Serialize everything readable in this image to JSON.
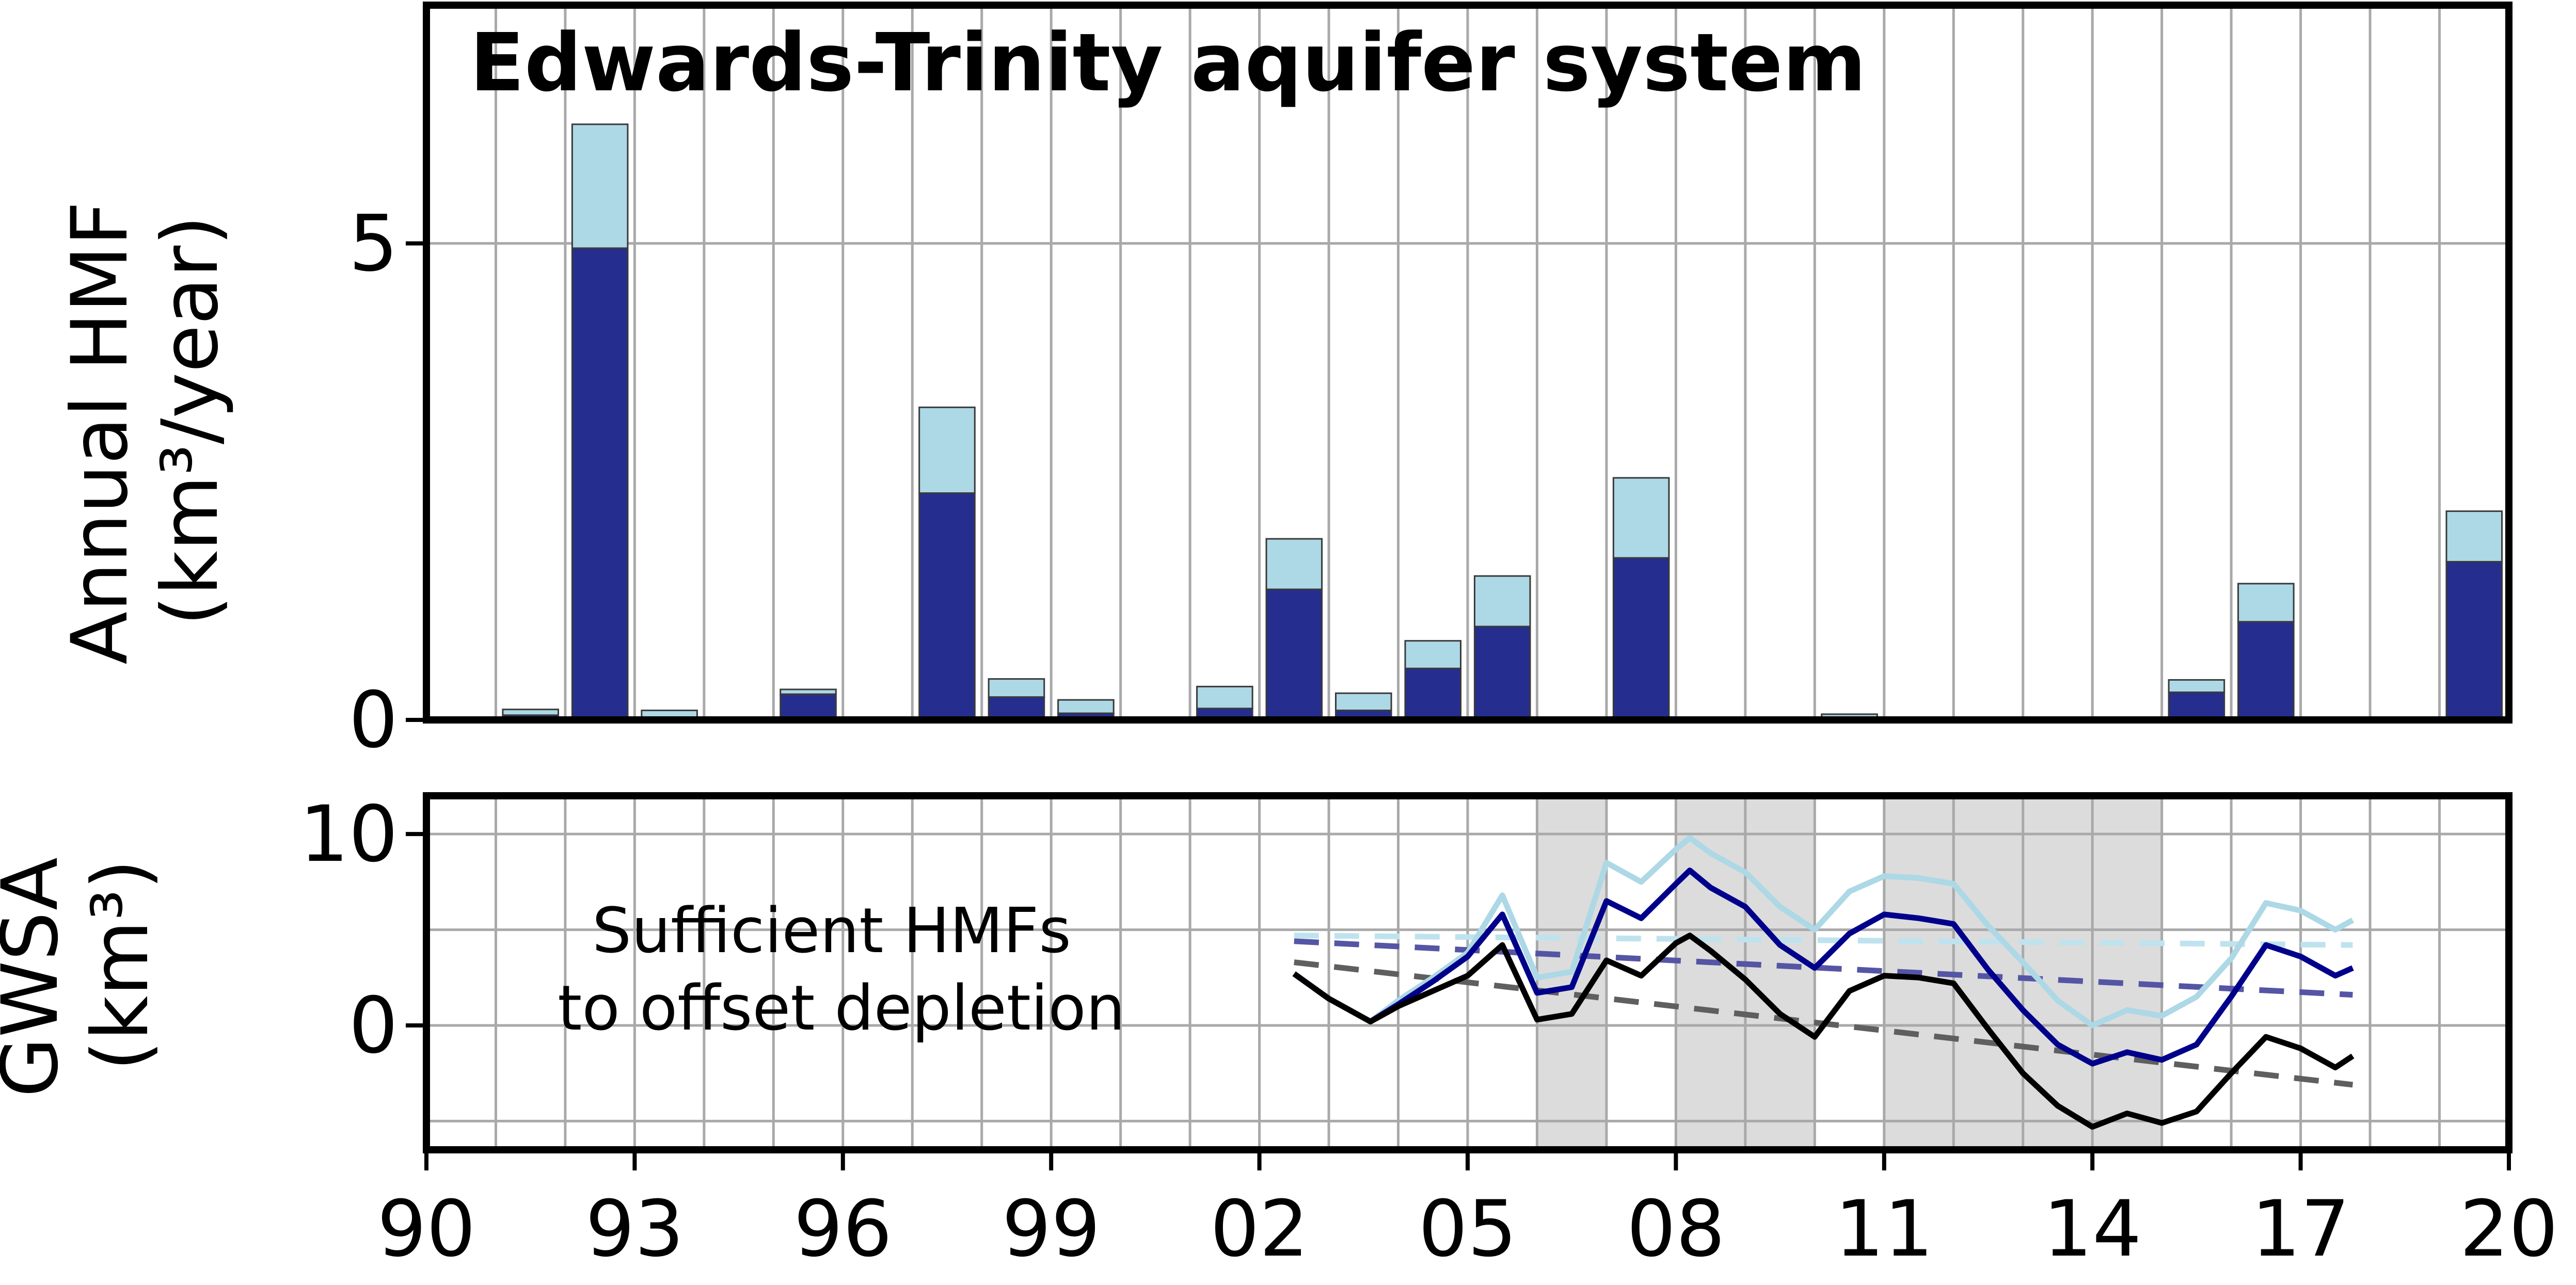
{
  "chart_data": [
    {
      "type": "bar",
      "stacked": true,
      "title": "Edwards-Trinity aquifer system",
      "ylabel_line1": "Annual HMF",
      "ylabel_line2": "(km³/year)",
      "ylim": [
        0,
        7.5
      ],
      "yticks": [
        "0",
        "5"
      ],
      "ytick_values": [
        0,
        5
      ],
      "grid": true,
      "xlim": [
        1990,
        2020
      ],
      "x": [
        1991,
        1992,
        1993,
        1995,
        1996,
        1997,
        1998,
        1999,
        2001,
        2002,
        2003,
        2004,
        2005,
        2007,
        2010,
        2015,
        2016,
        2019
      ],
      "series": [
        {
          "color": "#252e8f",
          "values": [
            0.05,
            4.95,
            0.03,
            0.27,
            0.03,
            2.38,
            0.24,
            0.07,
            0.12,
            1.37,
            0.1,
            0.54,
            0.98,
            1.7,
            0.02,
            0.29,
            1.03,
            1.66
          ]
        },
        {
          "color": "#add8e6",
          "values": [
            0.06,
            1.3,
            0.07,
            0.05,
            0.0,
            0.9,
            0.19,
            0.14,
            0.23,
            0.53,
            0.18,
            0.29,
            0.53,
            0.84,
            0.04,
            0.13,
            0.4,
            0.53
          ]
        }
      ]
    },
    {
      "type": "line",
      "ylabel_line1": "GWSA",
      "ylabel_line2": "(km³)",
      "ylim": [
        -6.5,
        12
      ],
      "yticks": [
        "0",
        "10"
      ],
      "ytick_values": [
        0,
        10
      ],
      "xlim": [
        1990,
        2020
      ],
      "xtick_values": [
        1990,
        1993,
        1996,
        1999,
        2002,
        2005,
        2008,
        2011,
        2014,
        2017,
        2020
      ],
      "xticks": [
        "90",
        "93",
        "96",
        "99",
        "02",
        "05",
        "08",
        "11",
        "14",
        "17",
        "20"
      ],
      "grid": true,
      "shaded_periods": [
        [
          2006,
          2007
        ],
        [
          2008,
          2010
        ],
        [
          2011,
          2015
        ]
      ],
      "shade_color": "#dcdcdc",
      "annotation": [
        "Sufficient HMFs",
        "to offset depletion"
      ],
      "x": [
        2002.5,
        2003.0,
        2003.6,
        2004.0,
        2004.5,
        2005.0,
        2005.5,
        2006.0,
        2006.5,
        2007.0,
        2007.5,
        2008.0,
        2008.2,
        2008.5,
        2009.0,
        2009.5,
        2010.0,
        2010.5,
        2011.0,
        2011.5,
        2012.0,
        2012.5,
        2013.0,
        2013.5,
        2014.0,
        2014.5,
        2015.0,
        2015.5,
        2016.0,
        2016.5,
        2017.0,
        2017.5,
        2017.75
      ],
      "series": [
        {
          "color": "#add8e6",
          "values": [
            2.7,
            1.4,
            0.2,
            1.3,
            2.5,
            3.8,
            6.8,
            2.5,
            2.8,
            8.5,
            7.5,
            9.2,
            9.8,
            9.0,
            8.0,
            6.2,
            5.0,
            7.0,
            7.8,
            7.7,
            7.4,
            5.2,
            3.3,
            1.3,
            0.0,
            0.8,
            0.5,
            1.5,
            3.5,
            6.4,
            6.0,
            5.0,
            5.5
          ]
        },
        {
          "color": "#00008b",
          "values": [
            2.7,
            1.4,
            0.2,
            1.1,
            2.3,
            3.6,
            5.8,
            1.7,
            2.0,
            6.5,
            5.6,
            7.4,
            8.1,
            7.2,
            6.2,
            4.2,
            3.0,
            4.8,
            5.8,
            5.6,
            5.3,
            2.9,
            0.8,
            -1.0,
            -2.0,
            -1.4,
            -1.8,
            -1.0,
            1.5,
            4.2,
            3.6,
            2.6,
            3.0
          ]
        },
        {
          "color": "#000000",
          "values": [
            2.7,
            1.4,
            0.2,
            1.0,
            1.8,
            2.6,
            4.2,
            0.3,
            0.6,
            3.4,
            2.6,
            4.3,
            4.7,
            3.9,
            2.4,
            0.6,
            -0.6,
            1.8,
            2.6,
            2.5,
            2.2,
            -0.2,
            -2.5,
            -4.2,
            -5.3,
            -4.6,
            -5.1,
            -4.5,
            -2.5,
            -0.6,
            -1.2,
            -2.2,
            -1.6
          ]
        }
      ],
      "trend_lines": [
        {
          "color": "#bfe3ee",
          "x": [
            2002.5,
            2017.75
          ],
          "values": [
            4.7,
            4.2
          ]
        },
        {
          "color": "#5555a5",
          "x": [
            2002.5,
            2017.75
          ],
          "values": [
            4.4,
            1.6
          ]
        },
        {
          "color": "#5f5f5f",
          "x": [
            2002.5,
            2017.75
          ],
          "values": [
            3.3,
            -3.1
          ]
        }
      ]
    }
  ]
}
